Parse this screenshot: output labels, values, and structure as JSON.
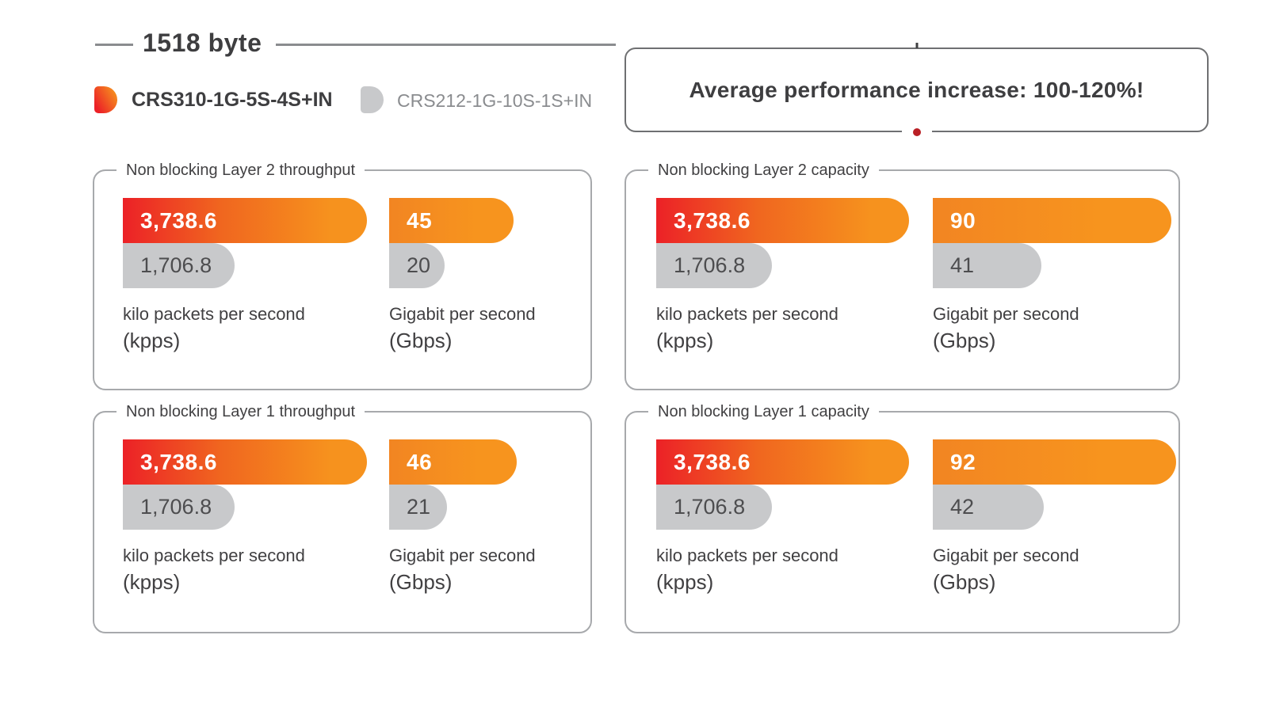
{
  "colors": {
    "accent_red": "#EC2127",
    "accent_orange": "#F6921E",
    "neutral_gray": "#C8C9CB",
    "text_dark": "#414042",
    "text_gray": "#8A8C8F",
    "dot_red": "#B92025"
  },
  "header": {
    "title": "1518 byte"
  },
  "legend": {
    "items": [
      {
        "label": "CRS310-1G-5S-4S+IN",
        "swatch": "red-orange-gradient"
      },
      {
        "label": "CRS212-1G-10S-1S+IN",
        "swatch": "gray"
      }
    ]
  },
  "banner": {
    "text": "Average performance increase: 100-120%!"
  },
  "units": {
    "kpps": {
      "line1": "kilo packets per second",
      "line2": "(kpps)"
    },
    "gbps": {
      "line1": "Gigabit per second",
      "line2": "(Gbps)"
    }
  },
  "panels": [
    {
      "title": "Non blocking Layer 2 throughput",
      "kpps": {
        "v1": 3738.6,
        "d1": "3,738.6",
        "v2": 1706.8,
        "d2": "1,706.8"
      },
      "gbps": {
        "v1": 45,
        "d1": "45",
        "v2": 20,
        "d2": "20"
      }
    },
    {
      "title": "Non blocking Layer 2 capacity",
      "kpps": {
        "v1": 3738.6,
        "d1": "3,738.6",
        "v2": 1706.8,
        "d2": "1,706.8"
      },
      "gbps": {
        "v1": 90,
        "d1": "90",
        "v2": 41,
        "d2": "41"
      }
    },
    {
      "title": "Non blocking Layer 1 throughput",
      "kpps": {
        "v1": 3738.6,
        "d1": "3,738.6",
        "v2": 1706.8,
        "d2": "1,706.8"
      },
      "gbps": {
        "v1": 46,
        "d1": "46",
        "v2": 21,
        "d2": "21"
      }
    },
    {
      "title": "Non blocking Layer 1 capacity",
      "kpps": {
        "v1": 3738.6,
        "d1": "3,738.6",
        "v2": 1706.8,
        "d2": "1,706.8"
      },
      "gbps": {
        "v1": 92,
        "d1": "92",
        "v2": 42,
        "d2": "42"
      }
    }
  ],
  "chart_data": [
    {
      "type": "bar",
      "title": "Non blocking Layer 2 throughput",
      "categories": [
        "CRS310-1G-5S-4S+IN",
        "CRS212-1G-10S-1S+IN"
      ],
      "series": [
        {
          "name": "kilo packets per second (kpps)",
          "values": [
            3738.6,
            1706.8
          ]
        },
        {
          "name": "Gigabit per second (Gbps)",
          "values": [
            45,
            20
          ]
        }
      ],
      "legend_position": "top-left",
      "grid": false
    },
    {
      "type": "bar",
      "title": "Non blocking Layer 2 capacity",
      "categories": [
        "CRS310-1G-5S-4S+IN",
        "CRS212-1G-10S-1S+IN"
      ],
      "series": [
        {
          "name": "kilo packets per second (kpps)",
          "values": [
            3738.6,
            1706.8
          ]
        },
        {
          "name": "Gigabit per second (Gbps)",
          "values": [
            90,
            41
          ]
        }
      ],
      "legend_position": "top-left",
      "grid": false
    },
    {
      "type": "bar",
      "title": "Non blocking Layer 1 throughput",
      "categories": [
        "CRS310-1G-5S-4S+IN",
        "CRS212-1G-10S-1S+IN"
      ],
      "series": [
        {
          "name": "kilo packets per second (kpps)",
          "values": [
            3738.6,
            1706.8
          ]
        },
        {
          "name": "Gigabit per second (Gbps)",
          "values": [
            46,
            21
          ]
        }
      ],
      "legend_position": "top-left",
      "grid": false
    },
    {
      "type": "bar",
      "title": "Non blocking Layer 1 capacity",
      "categories": [
        "CRS310-1G-5S-4S+IN",
        "CRS212-1G-10S-1S+IN"
      ],
      "series": [
        {
          "name": "kilo packets per second (kpps)",
          "values": [
            3738.6,
            1706.8
          ]
        },
        {
          "name": "Gigabit per second (Gbps)",
          "values": [
            92,
            42
          ]
        }
      ],
      "legend_position": "top-left",
      "grid": false
    }
  ]
}
